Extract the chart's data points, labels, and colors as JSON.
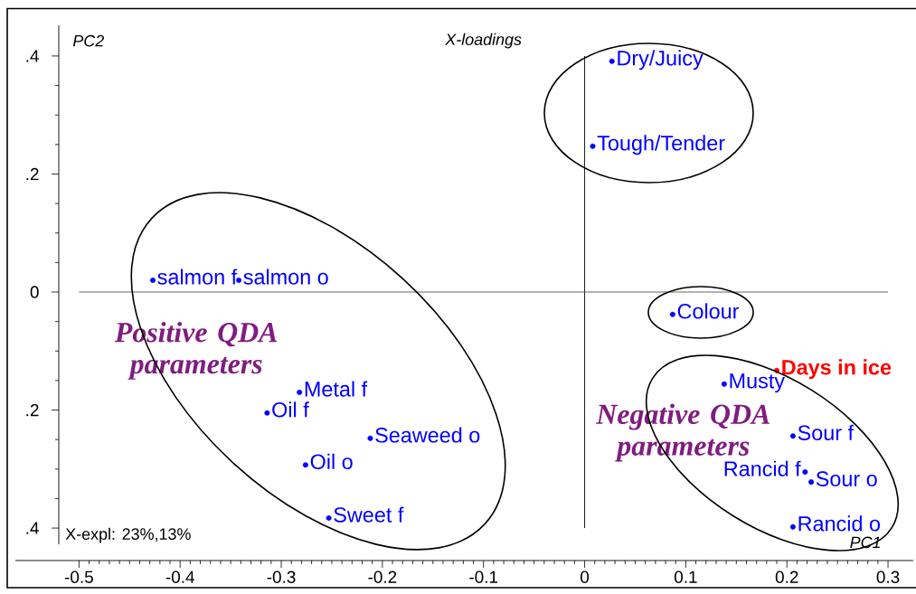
{
  "chart_data": {
    "type": "scatter",
    "title": "X-loadings",
    "xlabel": "PC1",
    "ylabel": "PC2",
    "xlim": [
      -0.52,
      0.325
    ],
    "ylim": [
      -0.455,
      0.452
    ],
    "xticks": [
      -0.5,
      -0.4,
      -0.3,
      -0.2,
      -0.1,
      0,
      0.1,
      0.2,
      0.3
    ],
    "yticks": [
      {
        "value": -0.4,
        "label": ".4"
      },
      {
        "value": -0.2,
        "label": ".2"
      },
      0,
      {
        "value": 0.2,
        "label": ".2"
      },
      {
        "value": 0.4,
        "label": ".4"
      }
    ],
    "marker": "circle",
    "ref_lines": [
      {
        "axis": "x",
        "value": 0,
        "color": "#000000"
      },
      {
        "axis": "y",
        "value": 0,
        "color": "#555555"
      }
    ],
    "annotations": [
      "X-expl: 23%,13%",
      "Positive QDA parameters",
      "Negative QDA parameters"
    ],
    "series": [
      {
        "name": "salmon f",
        "color": "#0000ff",
        "x": [
          -0.427
        ],
        "values": [
          0.02
        ]
      },
      {
        "name": "salmon o",
        "color": "#0000ff",
        "x": [
          -0.342
        ],
        "values": [
          0.02
        ]
      },
      {
        "name": "Metal f",
        "color": "#0000ff",
        "x": [
          -0.282
        ],
        "values": [
          -0.17
        ]
      },
      {
        "name": "Oil f",
        "color": "#0000ff",
        "x": [
          -0.314
        ],
        "values": [
          -0.205
        ]
      },
      {
        "name": "Seaweed o",
        "color": "#0000ff",
        "x": [
          -0.212
        ],
        "values": [
          -0.248
        ]
      },
      {
        "name": "Oil o",
        "color": "#0000ff",
        "x": [
          -0.276
        ],
        "values": [
          -0.293
        ]
      },
      {
        "name": "Sweet f",
        "color": "#0000ff",
        "x": [
          -0.253
        ],
        "values": [
          -0.383
        ]
      },
      {
        "name": "Dry/Juicy",
        "color": "#0000ff",
        "x": [
          0.027
        ],
        "values": [
          0.391
        ]
      },
      {
        "name": "Tough/Tender",
        "color": "#0000ff",
        "x": [
          0.008
        ],
        "values": [
          0.247
        ]
      },
      {
        "name": "Colour",
        "color": "#0000ff",
        "x": [
          0.087
        ],
        "values": [
          -0.038
        ]
      },
      {
        "name": "Days in ice",
        "color": "#ff0000",
        "x": [
          0.19
        ],
        "values": [
          -0.133
        ]
      },
      {
        "name": "Musty",
        "color": "#0000ff",
        "x": [
          0.138
        ],
        "values": [
          -0.156
        ]
      },
      {
        "name": "Sour f",
        "color": "#0000ff",
        "x": [
          0.206
        ],
        "values": [
          -0.244
        ]
      },
      {
        "name": "Rancid f",
        "color": "#0000ff",
        "x": [
          0.218
        ],
        "values": [
          -0.305
        ]
      },
      {
        "name": "Sour o",
        "color": "#0000ff",
        "x": [
          0.224
        ],
        "values": [
          -0.322
        ]
      },
      {
        "name": "Rancid o",
        "color": "#0000ff",
        "x": [
          0.206
        ],
        "values": [
          -0.398
        ]
      }
    ]
  }
}
